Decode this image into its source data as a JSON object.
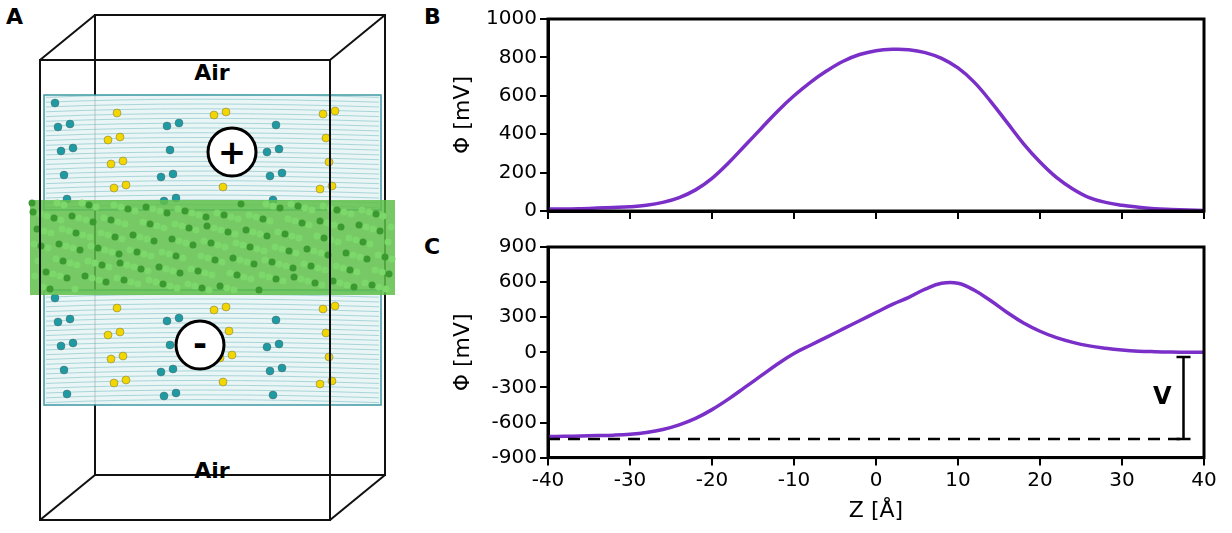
{
  "panel_a": {
    "panel": "A",
    "top_label": "Air",
    "bottom_label": "Air",
    "upper_sign": "+",
    "lower_sign": "-"
  },
  "chart_data": [
    {
      "panel": "B",
      "type": "line",
      "x": [
        -40,
        -38,
        -36,
        -34,
        -32,
        -30,
        -28,
        -26,
        -24,
        -22,
        -20,
        -18,
        -16,
        -14,
        -12,
        -10,
        -8,
        -6,
        -4,
        -2,
        0,
        2,
        4,
        6,
        8,
        10,
        12,
        14,
        16,
        18,
        20,
        22,
        24,
        26,
        28,
        30,
        32,
        34,
        36,
        38,
        40
      ],
      "values": [
        10,
        10,
        12,
        15,
        18,
        22,
        30,
        45,
        70,
        110,
        170,
        250,
        340,
        430,
        520,
        600,
        670,
        730,
        780,
        815,
        835,
        842,
        840,
        825,
        795,
        745,
        670,
        570,
        460,
        350,
        255,
        175,
        115,
        70,
        45,
        30,
        20,
        12,
        8,
        5,
        3
      ],
      "color": "#7a2fc8",
      "xlim": [
        -40,
        40
      ],
      "xticks": [
        -40,
        -30,
        -20,
        -10,
        0,
        10,
        20,
        30,
        40
      ],
      "ylim": [
        0,
        1000
      ],
      "yticks": [
        0,
        200,
        400,
        600,
        800,
        1000
      ],
      "y_label": "Φ [mV]",
      "tick_labels": "y",
      "grid": false
    },
    {
      "panel": "C",
      "type": "line",
      "x": [
        -40,
        -38,
        -36,
        -34,
        -32,
        -30,
        -28,
        -26,
        -24,
        -22,
        -20,
        -18,
        -16,
        -14,
        -12,
        -10,
        -8,
        -6,
        -4,
        -2,
        0,
        2,
        4,
        6,
        8,
        10,
        12,
        14,
        16,
        18,
        20,
        22,
        24,
        26,
        28,
        30,
        32,
        34,
        36,
        38,
        40
      ],
      "values": [
        -720,
        -718,
        -715,
        -712,
        -708,
        -700,
        -685,
        -660,
        -620,
        -565,
        -490,
        -400,
        -300,
        -200,
        -100,
        -10,
        60,
        130,
        200,
        270,
        340,
        410,
        470,
        540,
        590,
        590,
        530,
        440,
        340,
        250,
        180,
        125,
        85,
        55,
        35,
        20,
        10,
        5,
        2,
        0,
        0
      ],
      "color": "#7a2fc8",
      "xlim": [
        -40,
        40
      ],
      "xticks": [
        -40,
        -30,
        -20,
        -10,
        0,
        10,
        20,
        30,
        40
      ],
      "ylim": [
        -900,
        900
      ],
      "yticks": [
        -900,
        -600,
        -300,
        0,
        300,
        600,
        900
      ],
      "x_label": "Z [Å]",
      "y_label": "Φ [mV]",
      "grid": false,
      "reference_line": {
        "y": -740,
        "x_from": -40,
        "x_to": 37.5,
        "line_style": "dashed"
      },
      "annotations": [
        {
          "text": "V",
          "x": 37.5,
          "y_from": -740,
          "y_to": -40
        }
      ]
    }
  ]
}
